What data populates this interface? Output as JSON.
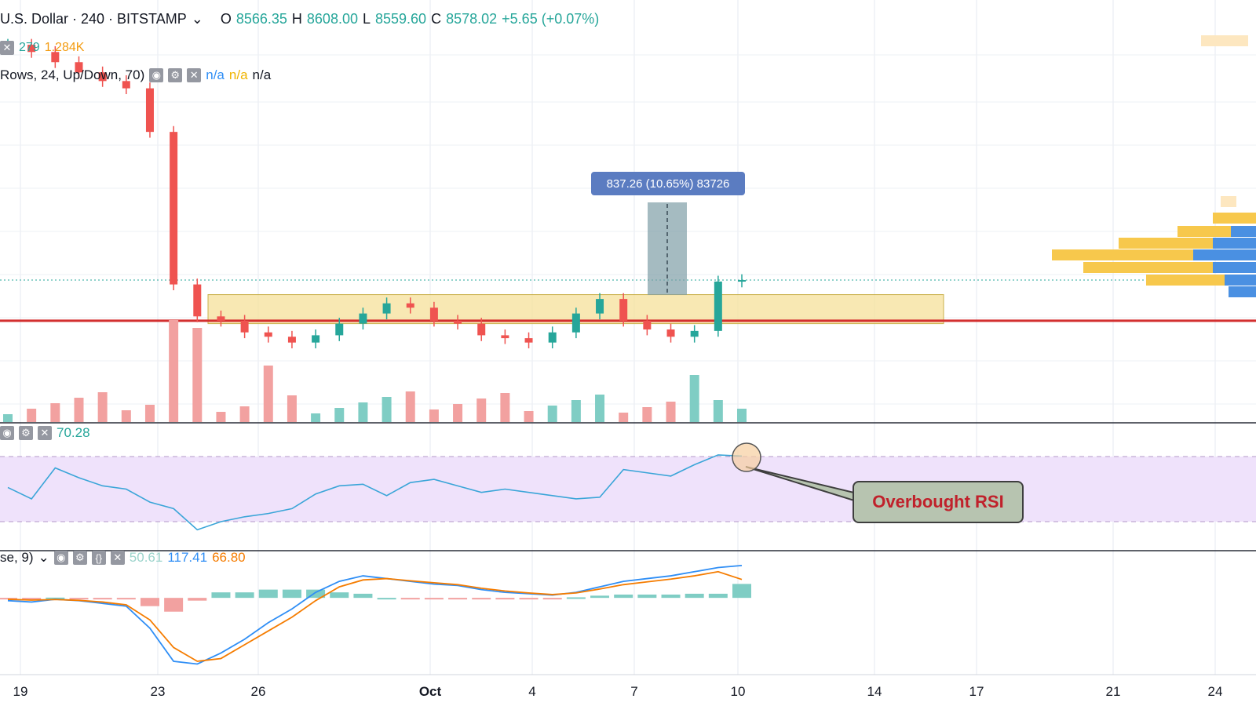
{
  "header": {
    "title": "U.S. Dollar · 240 · BITSTAMP",
    "ohlc": {
      "o_label": "O",
      "o": "8566.35",
      "h_label": "H",
      "h": "8608.00",
      "l_label": "L",
      "l": "8559.60",
      "c_label": "C",
      "c": "8578.02",
      "change": "+5.65 (+0.07%)"
    }
  },
  "indicators": {
    "row1": {
      "a": "279",
      "b": "1.284K"
    },
    "volume_profile": {
      "label": "Rows, 24, Up/Down, 70)",
      "v1": "n/a",
      "v2": "n/a",
      "v3": "n/a"
    },
    "rsi": {
      "value": "70.28"
    },
    "macd": {
      "label": "se, 9)",
      "v1": "50.61",
      "v2": "117.41",
      "v3": "66.80"
    }
  },
  "annotations": {
    "measure": "837.26 (10.65%) 83726",
    "callout": "Overbought RSI"
  },
  "colors": {
    "up": "#26a69a",
    "down": "#ef5350",
    "rsi_zone": "#efe2fb",
    "zone": "#f6e09a",
    "red_line": "#d32f2f",
    "macd": "#2f8ef5",
    "signal": "#f57c00"
  },
  "chart_data": {
    "type": "line",
    "title": "U.S. Dollar · 240 · BITSTAMP",
    "x_ticks": [
      "19",
      "23",
      "26",
      "Oct",
      "4",
      "7",
      "10",
      "14",
      "17",
      "21",
      "24"
    ],
    "price_close": [
      10200,
      10150,
      10080,
      10010,
      9950,
      9900,
      9600,
      8550,
      8330,
      8300,
      8220,
      8190,
      8150,
      8200,
      8280,
      8350,
      8420,
      8390,
      8300,
      8280,
      8200,
      8180,
      8150,
      8220,
      8350,
      8450,
      8300,
      8240,
      8190,
      8230,
      8570,
      8580
    ],
    "price_range": [
      7700,
      10400
    ],
    "rsi": [
      51,
      44,
      63,
      57,
      52,
      50,
      42,
      38,
      25,
      30,
      33,
      35,
      38,
      47,
      52,
      53,
      46,
      54,
      56,
      52,
      48,
      50,
      48,
      46,
      44,
      45,
      62,
      60,
      58,
      65,
      71,
      70.28
    ],
    "rsi_bands": [
      70,
      30
    ],
    "macd_line": [
      -10,
      -15,
      -5,
      -10,
      -20,
      -30,
      -110,
      -230,
      -240,
      -200,
      -150,
      -90,
      -40,
      20,
      60,
      80,
      70,
      60,
      50,
      45,
      30,
      20,
      15,
      10,
      20,
      40,
      60,
      70,
      80,
      95,
      110,
      117.41
    ],
    "signal_line": [
      -5,
      -8,
      -6,
      -9,
      -15,
      -25,
      -80,
      -180,
      -230,
      -220,
      -170,
      -120,
      -70,
      -10,
      40,
      65,
      70,
      62,
      55,
      48,
      35,
      25,
      18,
      12,
      18,
      32,
      48,
      58,
      68,
      80,
      95,
      66.8
    ],
    "zone": {
      "from": 8280,
      "to": 8480
    },
    "resistance_level": 8300
  }
}
